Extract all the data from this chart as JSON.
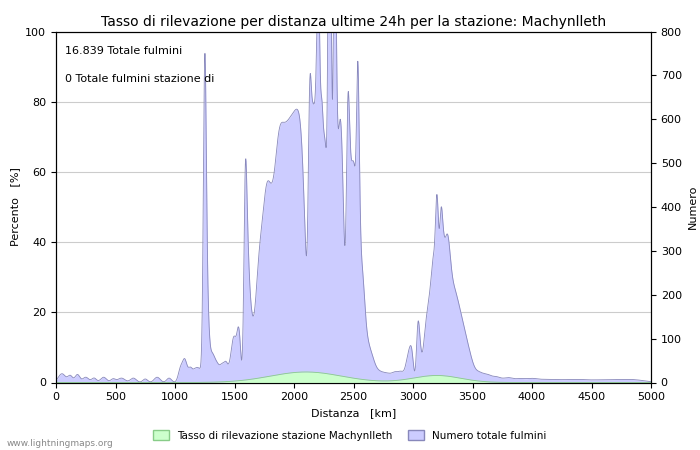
{
  "title": "Tasso di rilevazione per distanza ultime 24h per la stazione: Machynlleth",
  "xlabel": "Distanza   [km]",
  "ylabel_left": "Percento   [%]",
  "ylabel_right": "Numero",
  "annotation_lines": [
    "16.839 Totale fulmini",
    "0 Totale fulmini stazione di"
  ],
  "xlim": [
    0,
    5000
  ],
  "ylim_left": [
    0,
    100
  ],
  "ylim_right": [
    0,
    800
  ],
  "xticks": [
    0,
    500,
    1000,
    1500,
    2000,
    2500,
    3000,
    3500,
    4000,
    4500,
    5000
  ],
  "yticks_left": [
    0,
    20,
    40,
    60,
    80,
    100
  ],
  "yticks_right": [
    0,
    100,
    200,
    300,
    400,
    500,
    600,
    700,
    800
  ],
  "legend_label_green": "Tasso di rilevazione stazione Machynlleth",
  "legend_label_blue": "Numero totale fulmini",
  "fill_blue_color": "#ccccff",
  "fill_blue_line_color": "#8888bb",
  "fill_green_color": "#ccffcc",
  "fill_green_line_color": "#88cc88",
  "grid_color": "#cccccc",
  "bg_color": "#ffffff",
  "watermark": "www.lightningmaps.org",
  "title_fontsize": 10,
  "axis_fontsize": 8,
  "tick_fontsize": 8,
  "annotation_fontsize": 8
}
